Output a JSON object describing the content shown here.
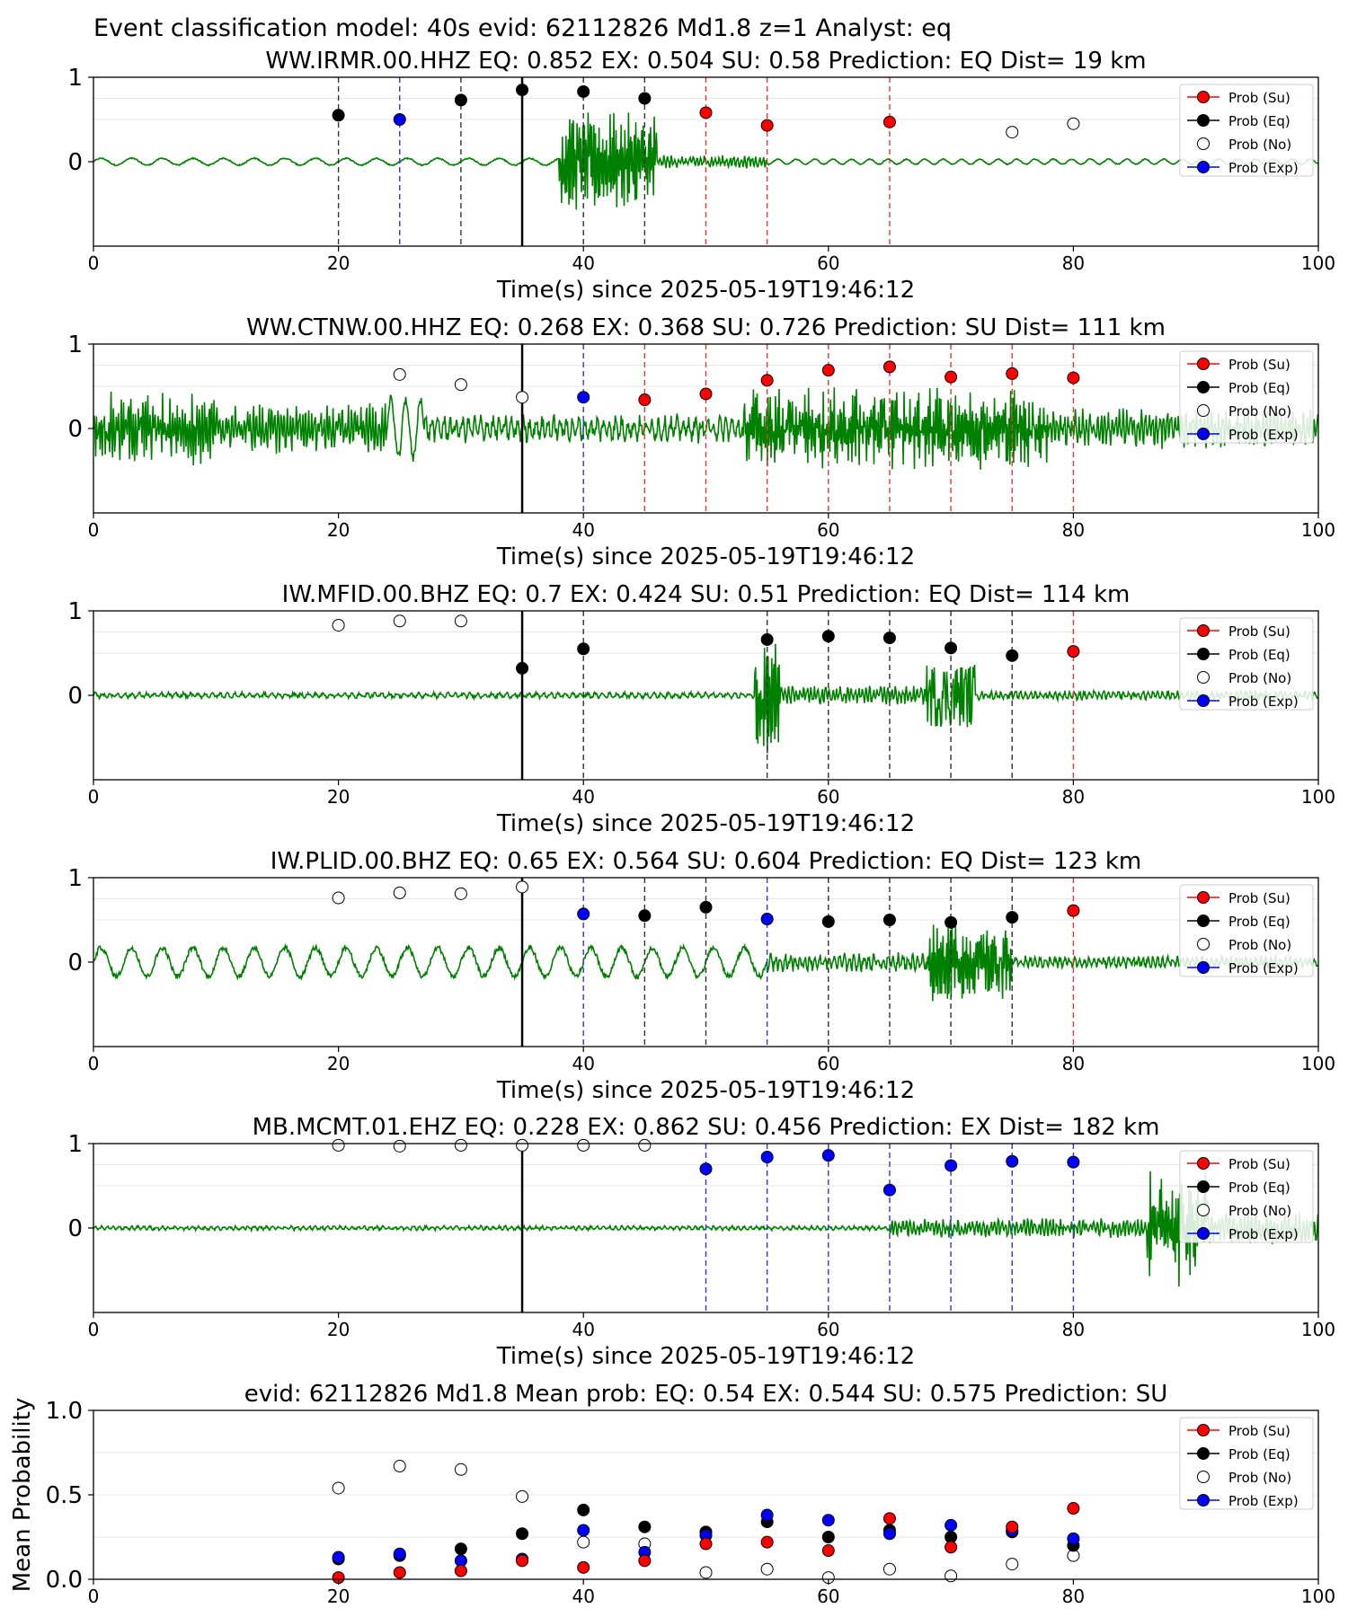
{
  "figure_title": "Event classification model: 40s evid: 62112826 Md1.8 z=1 Analyst: eq",
  "colors": {
    "su": "#ff0000",
    "eq": "#000000",
    "no": "#ffffff",
    "exp": "#0000ff",
    "waveform": "#008000"
  },
  "legend": [
    "Prob (Su)",
    "Prob (Eq)",
    "Prob (No)",
    "Prob (Exp)"
  ],
  "chart_data": [
    {
      "type": "scatter",
      "station": "WW.IRMR.00.HHZ",
      "title": "WW.IRMR.00.HHZ   EQ: 0.852  EX: 0.504  SU: 0.58   Prediction: EQ    Dist= 19 km",
      "xlabel": "Time(s) since 2025-05-19T19:46:12",
      "xlim": [
        0,
        100
      ],
      "ylim": [
        -1,
        1
      ],
      "xticks": [
        0,
        20,
        40,
        60,
        80,
        100
      ],
      "yticks": [
        0,
        1
      ],
      "event_line_x": 35,
      "grid": true,
      "legend_position": "upper-right",
      "windows": [
        {
          "x": 20,
          "cls": "eq",
          "prob": 0.55
        },
        {
          "x": 25,
          "cls": "exp",
          "prob": 0.5
        },
        {
          "x": 30,
          "cls": "eq",
          "prob": 0.73
        },
        {
          "x": 35,
          "cls": "eq",
          "prob": 0.85
        },
        {
          "x": 40,
          "cls": "eq",
          "prob": 0.83
        },
        {
          "x": 45,
          "cls": "eq",
          "prob": 0.75
        },
        {
          "x": 50,
          "cls": "su",
          "prob": 0.58
        },
        {
          "x": 55,
          "cls": "su",
          "prob": 0.43
        },
        {
          "x": 65,
          "cls": "su",
          "prob": 0.47
        },
        {
          "x": 75,
          "cls": "no",
          "prob": 0.35
        },
        {
          "x": 80,
          "cls": "no",
          "prob": 0.45
        }
      ],
      "dashed_lines": [
        {
          "x": 20,
          "cls": "eq"
        },
        {
          "x": 25,
          "cls": "exp"
        },
        {
          "x": 30,
          "cls": "eq"
        },
        {
          "x": 40,
          "cls": "eq"
        },
        {
          "x": 45,
          "cls": "eq"
        },
        {
          "x": 50,
          "cls": "su"
        },
        {
          "x": 55,
          "cls": "su"
        },
        {
          "x": 65,
          "cls": "su"
        }
      ],
      "waveform_segments": [
        {
          "from": 0,
          "to": 38,
          "amp": 0.04,
          "period": 2.5
        },
        {
          "from": 38,
          "to": 46,
          "amp": 0.6,
          "period": 0.15
        },
        {
          "from": 46,
          "to": 55,
          "amp": 0.08,
          "period": 0.3
        },
        {
          "from": 55,
          "to": 100,
          "amp": 0.03,
          "period": 1.5
        }
      ]
    },
    {
      "type": "scatter",
      "station": "WW.CTNW.00.HHZ",
      "title": "WW.CTNW.00.HHZ   EQ: 0.268  EX: 0.368  SU: 0.726   Prediction: SU    Dist= 111 km",
      "xlabel": "Time(s) since 2025-05-19T19:46:12",
      "xlim": [
        0,
        100
      ],
      "ylim": [
        -1,
        1
      ],
      "xticks": [
        0,
        20,
        40,
        60,
        80,
        100
      ],
      "yticks": [
        0,
        1
      ],
      "event_line_x": 35,
      "grid": true,
      "legend_position": "upper-right",
      "windows": [
        {
          "x": 25,
          "cls": "no",
          "prob": 0.64
        },
        {
          "x": 30,
          "cls": "no",
          "prob": 0.52
        },
        {
          "x": 35,
          "cls": "no",
          "prob": 0.37
        },
        {
          "x": 40,
          "cls": "exp",
          "prob": 0.37
        },
        {
          "x": 45,
          "cls": "su",
          "prob": 0.34
        },
        {
          "x": 50,
          "cls": "su",
          "prob": 0.41
        },
        {
          "x": 55,
          "cls": "su",
          "prob": 0.57
        },
        {
          "x": 60,
          "cls": "su",
          "prob": 0.69
        },
        {
          "x": 65,
          "cls": "su",
          "prob": 0.73
        },
        {
          "x": 70,
          "cls": "su",
          "prob": 0.61
        },
        {
          "x": 75,
          "cls": "su",
          "prob": 0.65
        },
        {
          "x": 80,
          "cls": "su",
          "prob": 0.6
        }
      ],
      "dashed_lines": [
        {
          "x": 40,
          "cls": "exp"
        },
        {
          "x": 45,
          "cls": "su"
        },
        {
          "x": 50,
          "cls": "su"
        },
        {
          "x": 55,
          "cls": "su"
        },
        {
          "x": 60,
          "cls": "su"
        },
        {
          "x": 65,
          "cls": "su"
        },
        {
          "x": 70,
          "cls": "su"
        },
        {
          "x": 75,
          "cls": "su"
        },
        {
          "x": 80,
          "cls": "su"
        }
      ],
      "waveform_segments": [
        {
          "from": 0,
          "to": 10,
          "amp": 0.45,
          "period": 0.2
        },
        {
          "from": 10,
          "to": 24,
          "amp": 0.3,
          "period": 0.25
        },
        {
          "from": 24,
          "to": 27,
          "amp": 0.35,
          "period": 1.2
        },
        {
          "from": 27,
          "to": 53,
          "amp": 0.18,
          "period": 0.5
        },
        {
          "from": 53,
          "to": 78,
          "amp": 0.5,
          "period": 0.15
        },
        {
          "from": 78,
          "to": 100,
          "amp": 0.25,
          "period": 0.3
        }
      ]
    },
    {
      "type": "scatter",
      "station": "IW.MFID.00.BHZ",
      "title": "IW.MFID.00.BHZ   EQ: 0.7  EX: 0.424  SU: 0.51   Prediction: EQ    Dist= 114 km",
      "xlabel": "Time(s) since 2025-05-19T19:46:12",
      "xlim": [
        0,
        100
      ],
      "ylim": [
        -1,
        1
      ],
      "xticks": [
        0,
        20,
        40,
        60,
        80,
        100
      ],
      "yticks": [
        0,
        1
      ],
      "event_line_x": 35,
      "grid": true,
      "legend_position": "upper-right",
      "windows": [
        {
          "x": 20,
          "cls": "no",
          "prob": 0.83
        },
        {
          "x": 25,
          "cls": "no",
          "prob": 0.88
        },
        {
          "x": 30,
          "cls": "no",
          "prob": 0.88
        },
        {
          "x": 35,
          "cls": "eq",
          "prob": 0.32
        },
        {
          "x": 40,
          "cls": "eq",
          "prob": 0.55
        },
        {
          "x": 55,
          "cls": "eq",
          "prob": 0.66
        },
        {
          "x": 60,
          "cls": "eq",
          "prob": 0.7
        },
        {
          "x": 65,
          "cls": "eq",
          "prob": 0.68
        },
        {
          "x": 70,
          "cls": "eq",
          "prob": 0.56
        },
        {
          "x": 75,
          "cls": "eq",
          "prob": 0.47
        },
        {
          "x": 80,
          "cls": "su",
          "prob": 0.52
        }
      ],
      "dashed_lines": [
        {
          "x": 40,
          "cls": "eq"
        },
        {
          "x": 55,
          "cls": "eq"
        },
        {
          "x": 60,
          "cls": "eq"
        },
        {
          "x": 65,
          "cls": "eq"
        },
        {
          "x": 70,
          "cls": "eq"
        },
        {
          "x": 75,
          "cls": "eq"
        },
        {
          "x": 80,
          "cls": "su"
        }
      ],
      "waveform_segments": [
        {
          "from": 0,
          "to": 54,
          "amp": 0.04,
          "period": 0.6
        },
        {
          "from": 54,
          "to": 56,
          "amp": 0.75,
          "period": 0.15
        },
        {
          "from": 56,
          "to": 68,
          "amp": 0.12,
          "period": 0.3
        },
        {
          "from": 68,
          "to": 72,
          "amp": 0.85,
          "period": 0.12
        },
        {
          "from": 72,
          "to": 100,
          "amp": 0.06,
          "period": 0.4
        }
      ]
    },
    {
      "type": "scatter",
      "station": "IW.PLID.00.BHZ",
      "title": "IW.PLID.00.BHZ   EQ: 0.65  EX: 0.564  SU: 0.604   Prediction: EQ    Dist= 123 km",
      "xlabel": "Time(s) since 2025-05-19T19:46:12",
      "xlim": [
        0,
        100
      ],
      "ylim": [
        -1,
        1
      ],
      "xticks": [
        0,
        20,
        40,
        60,
        80,
        100
      ],
      "yticks": [
        0,
        1
      ],
      "event_line_x": 35,
      "grid": true,
      "legend_position": "upper-right",
      "windows": [
        {
          "x": 20,
          "cls": "no",
          "prob": 0.76
        },
        {
          "x": 25,
          "cls": "no",
          "prob": 0.82
        },
        {
          "x": 30,
          "cls": "no",
          "prob": 0.81
        },
        {
          "x": 35,
          "cls": "no",
          "prob": 0.89
        },
        {
          "x": 40,
          "cls": "exp",
          "prob": 0.57
        },
        {
          "x": 45,
          "cls": "eq",
          "prob": 0.55
        },
        {
          "x": 50,
          "cls": "eq",
          "prob": 0.65
        },
        {
          "x": 55,
          "cls": "exp",
          "prob": 0.51
        },
        {
          "x": 60,
          "cls": "eq",
          "prob": 0.48
        },
        {
          "x": 65,
          "cls": "eq",
          "prob": 0.5
        },
        {
          "x": 70,
          "cls": "eq",
          "prob": 0.47
        },
        {
          "x": 75,
          "cls": "eq",
          "prob": 0.53
        },
        {
          "x": 80,
          "cls": "su",
          "prob": 0.61
        }
      ],
      "dashed_lines": [
        {
          "x": 40,
          "cls": "exp"
        },
        {
          "x": 45,
          "cls": "eq"
        },
        {
          "x": 50,
          "cls": "eq"
        },
        {
          "x": 55,
          "cls": "exp"
        },
        {
          "x": 60,
          "cls": "eq"
        },
        {
          "x": 65,
          "cls": "eq"
        },
        {
          "x": 70,
          "cls": "eq"
        },
        {
          "x": 75,
          "cls": "eq"
        },
        {
          "x": 80,
          "cls": "su"
        }
      ],
      "waveform_segments": [
        {
          "from": 0,
          "to": 55,
          "amp": 0.17,
          "period": 2.5
        },
        {
          "from": 55,
          "to": 68,
          "amp": 0.12,
          "period": 0.4
        },
        {
          "from": 68,
          "to": 75,
          "amp": 0.5,
          "period": 0.15
        },
        {
          "from": 75,
          "to": 100,
          "amp": 0.08,
          "period": 0.4
        }
      ]
    },
    {
      "type": "scatter",
      "station": "MB.MCMT.01.EHZ",
      "title": "MB.MCMT.01.EHZ   EQ: 0.228  EX: 0.862  SU: 0.456   Prediction: EX    Dist= 182 km",
      "xlabel": "Time(s) since 2025-05-19T19:46:12",
      "xlim": [
        0,
        100
      ],
      "ylim": [
        -1,
        1
      ],
      "xticks": [
        0,
        20,
        40,
        60,
        80,
        100
      ],
      "yticks": [
        0,
        1
      ],
      "event_line_x": 35,
      "grid": true,
      "legend_position": "upper-right",
      "windows": [
        {
          "x": 20,
          "cls": "no",
          "prob": 0.98
        },
        {
          "x": 25,
          "cls": "no",
          "prob": 0.97
        },
        {
          "x": 30,
          "cls": "no",
          "prob": 0.98
        },
        {
          "x": 35,
          "cls": "no",
          "prob": 0.98
        },
        {
          "x": 40,
          "cls": "no",
          "prob": 0.98
        },
        {
          "x": 45,
          "cls": "no",
          "prob": 0.98
        },
        {
          "x": 50,
          "cls": "exp",
          "prob": 0.7
        },
        {
          "x": 55,
          "cls": "exp",
          "prob": 0.84
        },
        {
          "x": 60,
          "cls": "exp",
          "prob": 0.86
        },
        {
          "x": 65,
          "cls": "exp",
          "prob": 0.45
        },
        {
          "x": 70,
          "cls": "exp",
          "prob": 0.74
        },
        {
          "x": 75,
          "cls": "exp",
          "prob": 0.79
        },
        {
          "x": 80,
          "cls": "exp",
          "prob": 0.78
        }
      ],
      "dashed_lines": [
        {
          "x": 50,
          "cls": "exp"
        },
        {
          "x": 55,
          "cls": "exp"
        },
        {
          "x": 60,
          "cls": "exp"
        },
        {
          "x": 65,
          "cls": "exp"
        },
        {
          "x": 70,
          "cls": "exp"
        },
        {
          "x": 75,
          "cls": "exp"
        },
        {
          "x": 80,
          "cls": "exp"
        }
      ],
      "waveform_segments": [
        {
          "from": 0,
          "to": 65,
          "amp": 0.03,
          "period": 0.5
        },
        {
          "from": 65,
          "to": 86,
          "amp": 0.12,
          "period": 0.3
        },
        {
          "from": 86,
          "to": 91,
          "amp": 0.75,
          "period": 0.15
        },
        {
          "from": 91,
          "to": 100,
          "amp": 0.2,
          "period": 0.3
        }
      ]
    },
    {
      "type": "scatter",
      "station": "mean",
      "title": "evid: 62112826  Md1.8   Mean prob:   EQ: 0.54  EX: 0.544  SU: 0.575   Prediction: SU",
      "xlabel": "",
      "ylabel": "Mean Probability",
      "xlim": [
        0,
        100
      ],
      "ylim": [
        0,
        1
      ],
      "xticks": [
        0,
        20,
        40,
        60,
        80,
        100
      ],
      "yticks": [
        0.0,
        0.5,
        1.0
      ],
      "ytick_labels": [
        "0.0",
        "0.5",
        "1.0"
      ],
      "grid": true,
      "legend_position": "upper-right",
      "x": [
        20,
        25,
        30,
        35,
        40,
        45,
        50,
        55,
        60,
        65,
        70,
        75,
        80
      ],
      "series": [
        {
          "name": "Prob (No)",
          "cls": "no",
          "values": [
            0.54,
            0.67,
            0.65,
            0.49,
            0.22,
            0.21,
            0.04,
            0.06,
            0.01,
            0.06,
            0.02,
            0.09,
            0.14
          ]
        },
        {
          "name": "Prob (Eq)",
          "cls": "eq",
          "values": [
            0.12,
            0.14,
            0.18,
            0.27,
            0.41,
            0.31,
            0.28,
            0.34,
            0.25,
            0.29,
            0.25,
            0.28,
            0.2
          ]
        },
        {
          "name": "Prob (Exp)",
          "cls": "exp",
          "values": [
            0.13,
            0.15,
            0.11,
            0.12,
            0.29,
            0.16,
            0.26,
            0.38,
            0.35,
            0.27,
            0.32,
            0.29,
            0.24
          ]
        },
        {
          "name": "Prob (Su)",
          "cls": "su",
          "values": [
            0.01,
            0.04,
            0.05,
            0.11,
            0.07,
            0.11,
            0.21,
            0.22,
            0.17,
            0.36,
            0.19,
            0.31,
            0.42
          ]
        }
      ]
    }
  ]
}
